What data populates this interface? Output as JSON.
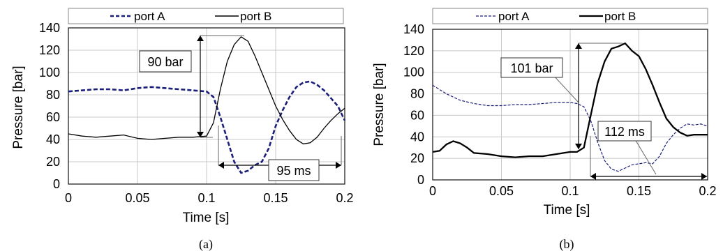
{
  "chart_data": [
    {
      "id": "a",
      "type": "line",
      "caption": "(a)",
      "xlabel": "Time [s]",
      "ylabel": "Pressure [bar]",
      "xlim": [
        0,
        0.2
      ],
      "ylim": [
        0,
        140
      ],
      "xticks": [
        0,
        0.05,
        0.1,
        0.15,
        0.2
      ],
      "xtick_labels": [
        "0",
        "0.05",
        "0.1",
        "0.15",
        "0.2"
      ],
      "yticks": [
        0,
        20,
        40,
        60,
        80,
        100,
        120,
        140
      ],
      "ytick_labels": [
        "0",
        "20",
        "40",
        "60",
        "80",
        "100",
        "120",
        "140"
      ],
      "grid": true,
      "legend_position": "top",
      "series": [
        {
          "name": "port A",
          "style": "dashed",
          "color": "#1a1f7a",
          "x": [
            0,
            0.01,
            0.02,
            0.03,
            0.04,
            0.05,
            0.06,
            0.07,
            0.08,
            0.09,
            0.1,
            0.105,
            0.11,
            0.115,
            0.12,
            0.125,
            0.13,
            0.135,
            0.14,
            0.145,
            0.15,
            0.155,
            0.16,
            0.165,
            0.17,
            0.175,
            0.18,
            0.185,
            0.19,
            0.195,
            0.2
          ],
          "y": [
            83,
            84,
            85,
            85,
            84,
            86,
            87,
            86,
            85,
            84,
            83,
            78,
            60,
            40,
            20,
            10,
            12,
            17,
            20,
            32,
            52,
            66,
            78,
            87,
            91,
            92,
            89,
            84,
            77,
            70,
            57
          ]
        },
        {
          "name": "port B",
          "style": "solid",
          "color": "#000000",
          "x": [
            0,
            0.01,
            0.02,
            0.03,
            0.04,
            0.05,
            0.06,
            0.07,
            0.08,
            0.09,
            0.1,
            0.105,
            0.11,
            0.115,
            0.12,
            0.125,
            0.13,
            0.135,
            0.14,
            0.145,
            0.15,
            0.155,
            0.16,
            0.165,
            0.17,
            0.175,
            0.18,
            0.185,
            0.19,
            0.195,
            0.2
          ],
          "y": [
            45,
            43,
            42,
            43,
            44,
            41,
            40,
            41,
            42,
            42,
            43,
            55,
            85,
            110,
            125,
            132,
            128,
            115,
            100,
            85,
            70,
            58,
            48,
            40,
            36,
            37,
            42,
            50,
            57,
            63,
            68
          ]
        }
      ],
      "annotations": [
        {
          "text": "90 bar",
          "measure": "vertical",
          "from": [
            0.098,
            42
          ],
          "to": [
            0.098,
            132
          ]
        },
        {
          "text": "95 ms",
          "measure": "horizontal",
          "from": [
            0.11,
            17
          ],
          "to": [
            0.2,
            17
          ]
        }
      ]
    },
    {
      "id": "b",
      "type": "line",
      "caption": "(b)",
      "xlabel": "Time [s]",
      "ylabel": "Pressure [bar]",
      "xlim": [
        0,
        0.2
      ],
      "ylim": [
        0,
        140
      ],
      "xticks": [
        0,
        0.05,
        0.1,
        0.15,
        0.2
      ],
      "xtick_labels": [
        "0",
        "0.05",
        "0.1",
        "0.15",
        "0.2"
      ],
      "yticks": [
        0,
        20,
        40,
        60,
        80,
        100,
        120,
        140
      ],
      "ytick_labels": [
        "0",
        "20",
        "40",
        "60",
        "80",
        "100",
        "120",
        "140"
      ],
      "grid": true,
      "legend_position": "top",
      "series": [
        {
          "name": "port A",
          "style": "dashed",
          "color": "#1a1f7a",
          "x": [
            0,
            0.01,
            0.02,
            0.03,
            0.04,
            0.05,
            0.06,
            0.07,
            0.08,
            0.09,
            0.1,
            0.105,
            0.11,
            0.115,
            0.12,
            0.125,
            0.13,
            0.135,
            0.14,
            0.145,
            0.15,
            0.155,
            0.16,
            0.165,
            0.17,
            0.175,
            0.18,
            0.185,
            0.19,
            0.195,
            0.2
          ],
          "y": [
            88,
            80,
            74,
            71,
            69,
            69,
            70,
            70,
            71,
            72,
            72,
            71,
            68,
            55,
            35,
            18,
            10,
            8,
            11,
            14,
            15,
            16,
            15,
            22,
            34,
            42,
            48,
            52,
            51,
            52,
            50
          ]
        },
        {
          "name": "port B",
          "style": "solid",
          "color": "#000000",
          "x": [
            0,
            0.005,
            0.01,
            0.015,
            0.02,
            0.025,
            0.03,
            0.04,
            0.05,
            0.06,
            0.07,
            0.08,
            0.09,
            0.1,
            0.105,
            0.11,
            0.115,
            0.12,
            0.125,
            0.13,
            0.135,
            0.14,
            0.145,
            0.15,
            0.155,
            0.16,
            0.165,
            0.17,
            0.175,
            0.18,
            0.185,
            0.19,
            0.2
          ],
          "y": [
            26,
            27,
            33,
            36,
            34,
            30,
            25,
            24,
            22,
            21,
            22,
            22,
            24,
            26,
            26,
            30,
            60,
            90,
            110,
            122,
            124,
            127,
            120,
            115,
            103,
            88,
            72,
            57,
            49,
            44,
            41,
            42,
            42
          ]
        }
      ],
      "annotations": [
        {
          "text": "101 bar",
          "measure": "vertical",
          "from": [
            0.109,
            27
          ],
          "to": [
            0.109,
            127
          ]
        },
        {
          "text": "112 ms",
          "measure": "horizontal",
          "from": [
            0.116,
            3
          ],
          "to": [
            0.2,
            3
          ]
        }
      ]
    }
  ]
}
